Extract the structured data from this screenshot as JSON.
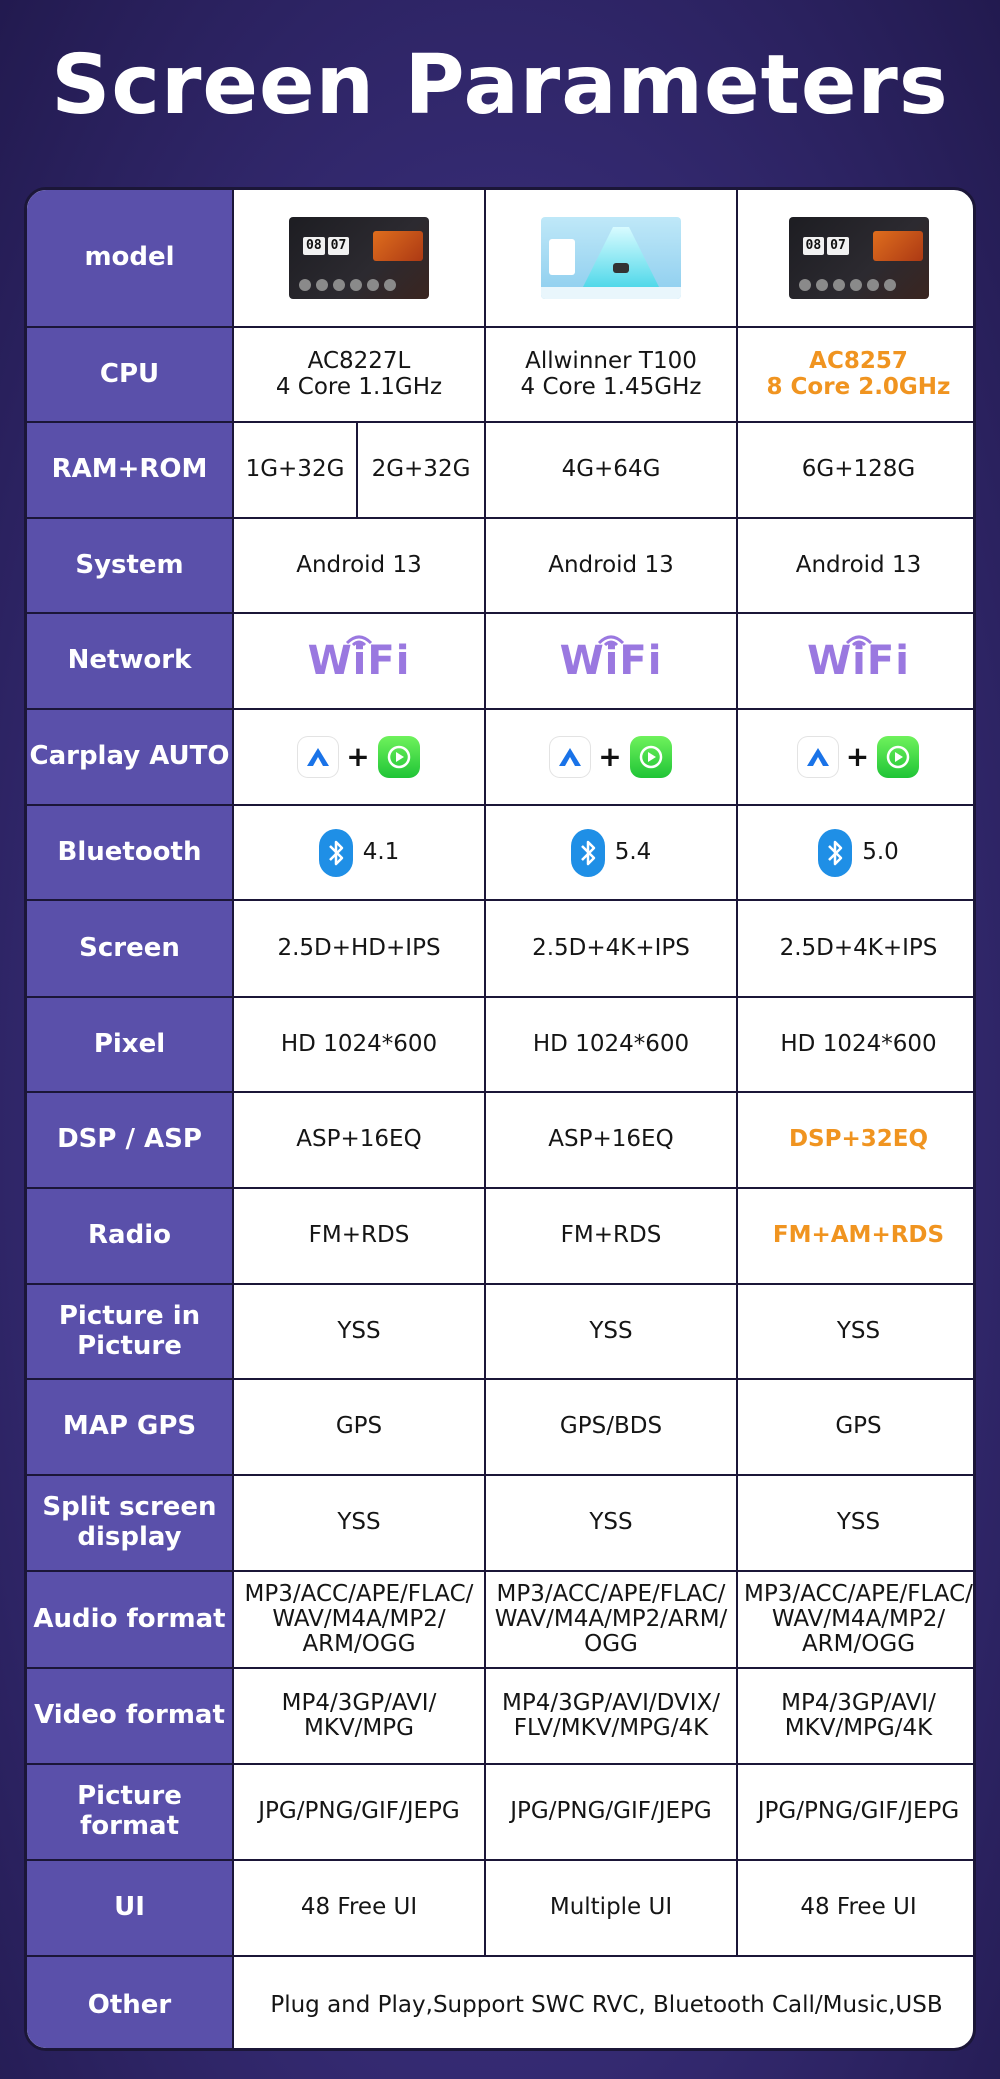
{
  "title": "Screen Parameters",
  "colors": {
    "background": "#3a2f7c",
    "label_column": "#5a50aa",
    "highlight": "#f09420",
    "wifi": "#9a78e0",
    "bluetooth": "#1f8fe6",
    "carplay": "#2fd048"
  },
  "rows": {
    "model": {
      "label": "model",
      "thumbnails": [
        "dark-home-screen",
        "light-navigation-screen",
        "dark-home-screen"
      ],
      "clock_digits": [
        "08",
        "07"
      ]
    },
    "cpu": {
      "label": "CPU",
      "values": [
        [
          "AC8227L",
          "4 Core 1.1GHz"
        ],
        [
          "Allwinner T100",
          "4 Core 1.45GHz"
        ],
        [
          "AC8257",
          "8 Core 2.0GHz"
        ]
      ]
    },
    "ram_rom": {
      "label": "RAM+ROM",
      "values": [
        "1G+32G",
        "2G+32G",
        "4G+64G",
        "6G+128G"
      ]
    },
    "system": {
      "label": "System",
      "values": [
        "Android 13",
        "Android 13",
        "Android 13"
      ]
    },
    "network": {
      "label": "Network",
      "values": [
        "WiFi",
        "WiFi",
        "WiFi"
      ]
    },
    "carplay": {
      "label": "Carplay AUTO",
      "icons": [
        "android-auto-icon",
        "carplay-icon"
      ],
      "plus": "+"
    },
    "bluetooth": {
      "label": "Bluetooth",
      "values": [
        "4.1",
        "5.4",
        "5.0"
      ]
    },
    "screen": {
      "label": "Screen",
      "values": [
        "2.5D+HD+IPS",
        "2.5D+4K+IPS",
        "2.5D+4K+IPS"
      ]
    },
    "pixel": {
      "label": "Pixel",
      "values": [
        "HD 1024*600",
        "HD 1024*600",
        "HD 1024*600"
      ]
    },
    "dsp": {
      "label": "DSP / ASP",
      "values": [
        "ASP+16EQ",
        "ASP+16EQ",
        "DSP+32EQ"
      ]
    },
    "radio": {
      "label": "Radio",
      "values": [
        "FM+RDS",
        "FM+RDS",
        "FM+AM+RDS"
      ]
    },
    "pip": {
      "label": [
        "Picture in",
        "Picture"
      ],
      "values": [
        "YSS",
        "YSS",
        "YSS"
      ]
    },
    "gps": {
      "label": "MAP GPS",
      "values": [
        "GPS",
        "GPS/BDS",
        "GPS"
      ]
    },
    "split": {
      "label": [
        "Split screen",
        "display"
      ],
      "values": [
        "YSS",
        "YSS",
        "YSS"
      ]
    },
    "audio": {
      "label": "Audio format",
      "values": [
        [
          "MP3/ACC/APE/FLAC/",
          "WAV/M4A/MP2/",
          "ARM/OGG"
        ],
        [
          "MP3/ACC/APE/FLAC/",
          "WAV/M4A/MP2/ARM/",
          "OGG"
        ],
        [
          "MP3/ACC/APE/FLAC/",
          "WAV/M4A/MP2/",
          "ARM/OGG"
        ]
      ]
    },
    "video": {
      "label": "Video format",
      "values": [
        [
          "MP4/3GP/AVI/",
          "MKV/MPG"
        ],
        [
          "MP4/3GP/AVI/DVIX/",
          "FLV/MKV/MPG/4K"
        ],
        [
          "MP4/3GP/AVI/",
          "MKV/MPG/4K"
        ]
      ]
    },
    "picture": {
      "label": "Picture format",
      "values": [
        "JPG/PNG/GIF/JEPG",
        "JPG/PNG/GIF/JEPG",
        "JPG/PNG/GIF/JEPG"
      ]
    },
    "ui": {
      "label": "UI",
      "values": [
        "48 Free UI",
        "Multiple UI",
        "48 Free UI"
      ]
    },
    "other": {
      "label": "Other",
      "value": "Plug and Play,Support SWC RVC, Bluetooth Call/Music,USB"
    }
  }
}
